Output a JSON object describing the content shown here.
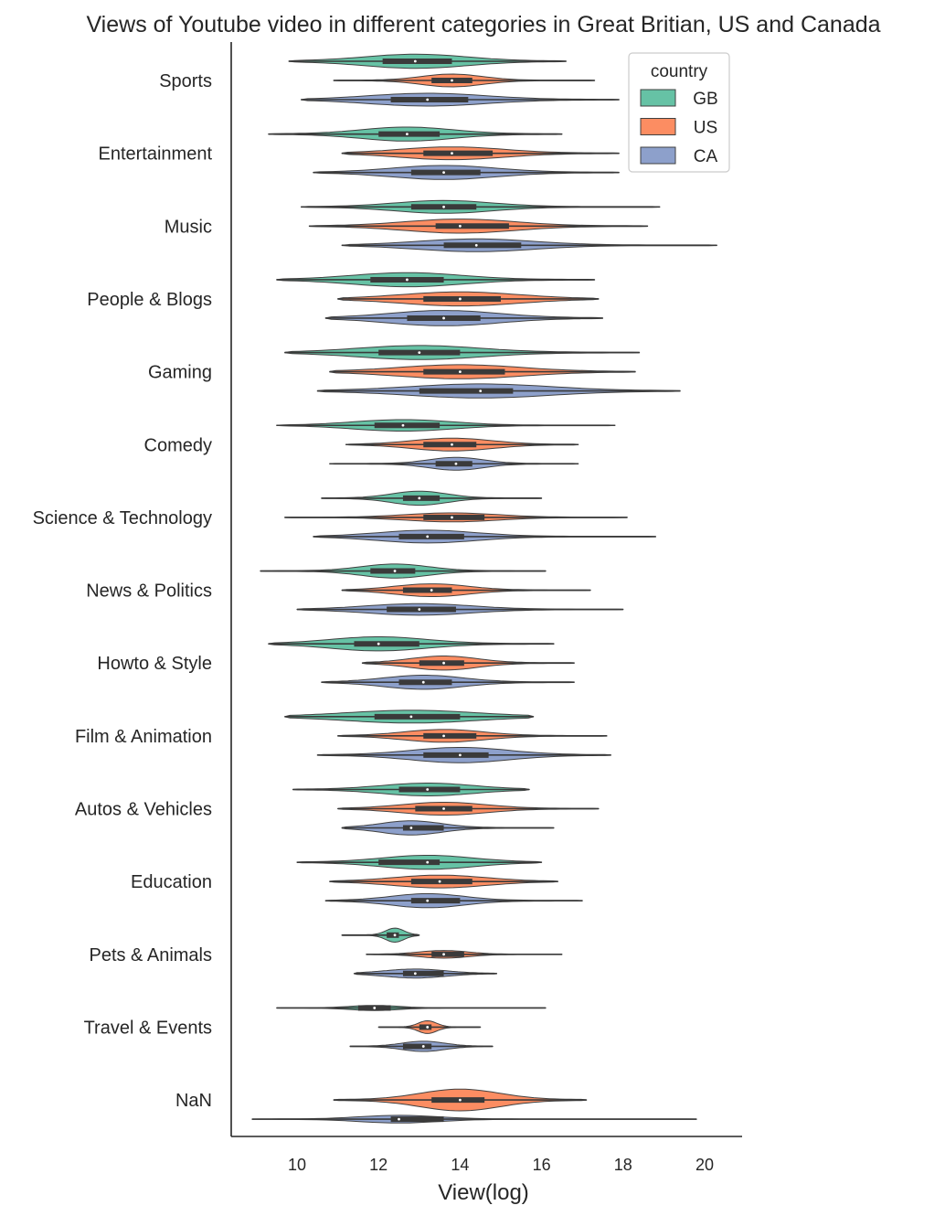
{
  "chart_data": {
    "type": "violin",
    "title": "Views of Youtube video in different categories in Great Britian, US and Canada",
    "xlabel": "View(log)",
    "ylabel": "",
    "xlim": [
      8.4,
      21.0
    ],
    "xticks": [
      "10",
      "12",
      "14",
      "16",
      "18",
      "20"
    ],
    "grid": false,
    "legend": {
      "title": "country",
      "placement": "top-right",
      "entries": [
        {
          "name": "GB",
          "color": "#66c2a5"
        },
        {
          "name": "US",
          "color": "#fc8d62"
        },
        {
          "name": "CA",
          "color": "#8da0cb"
        }
      ]
    },
    "categories": [
      "Sports",
      "Entertainment",
      "Music",
      "People & Blogs",
      "Gaming",
      "Comedy",
      "Science & Technology",
      "News & Politics",
      "Howto & Style",
      "Film & Animation",
      "Autos & Vehicles",
      "Education",
      "Pets & Animals",
      "Travel & Events",
      "NaN"
    ],
    "series": [
      {
        "name": "GB",
        "values": [
          {
            "min": 9.8,
            "q1": 12.1,
            "median": 12.9,
            "q3": 13.8,
            "max": 16.6,
            "width": 0.55
          },
          {
            "min": 9.3,
            "q1": 12.0,
            "median": 12.7,
            "q3": 13.5,
            "max": 16.5,
            "width": 0.55
          },
          {
            "min": 10.1,
            "q1": 12.8,
            "median": 13.6,
            "q3": 14.4,
            "max": 18.9,
            "width": 0.5
          },
          {
            "min": 9.5,
            "q1": 11.8,
            "median": 12.7,
            "q3": 13.6,
            "max": 17.3,
            "width": 0.55
          },
          {
            "min": 9.7,
            "q1": 12.0,
            "median": 13.0,
            "q3": 14.0,
            "max": 18.4,
            "width": 0.55
          },
          {
            "min": 9.5,
            "q1": 11.9,
            "median": 12.6,
            "q3": 13.5,
            "max": 17.8,
            "width": 0.45
          },
          {
            "min": 10.6,
            "q1": 12.6,
            "median": 13.0,
            "q3": 13.5,
            "max": 16.0,
            "width": 0.55
          },
          {
            "min": 9.1,
            "q1": 11.8,
            "median": 12.4,
            "q3": 12.9,
            "max": 16.1,
            "width": 0.55
          },
          {
            "min": 9.3,
            "q1": 11.4,
            "median": 12.0,
            "q3": 13.0,
            "max": 16.3,
            "width": 0.55
          },
          {
            "min": 9.7,
            "q1": 11.9,
            "median": 12.8,
            "q3": 14.0,
            "max": 15.8,
            "width": 0.5
          },
          {
            "min": 9.9,
            "q1": 12.5,
            "median": 13.2,
            "q3": 14.0,
            "max": 15.7,
            "width": 0.5
          },
          {
            "min": 10.0,
            "q1": 12.0,
            "median": 13.2,
            "q3": 13.5,
            "max": 16.0,
            "width": 0.55
          },
          {
            "min": 11.1,
            "q1": 12.2,
            "median": 12.4,
            "q3": 12.5,
            "max": 13.0,
            "width": 0.55
          },
          {
            "min": 9.5,
            "q1": 11.5,
            "median": 11.9,
            "q3": 12.3,
            "max": 16.1,
            "width": 0.2
          },
          null
        ]
      },
      {
        "name": "US",
        "values": [
          {
            "min": 10.9,
            "q1": 13.3,
            "median": 13.8,
            "q3": 14.3,
            "max": 17.3,
            "width": 0.5
          },
          {
            "min": 11.1,
            "q1": 13.1,
            "median": 13.8,
            "q3": 14.8,
            "max": 17.9,
            "width": 0.5
          },
          {
            "min": 10.3,
            "q1": 13.4,
            "median": 14.0,
            "q3": 15.2,
            "max": 18.6,
            "width": 0.55
          },
          {
            "min": 11.0,
            "q1": 13.1,
            "median": 14.0,
            "q3": 15.0,
            "max": 17.4,
            "width": 0.55
          },
          {
            "min": 10.8,
            "q1": 13.1,
            "median": 14.0,
            "q3": 15.1,
            "max": 18.3,
            "width": 0.55
          },
          {
            "min": 11.2,
            "q1": 13.1,
            "median": 13.8,
            "q3": 14.4,
            "max": 16.9,
            "width": 0.5
          },
          {
            "min": 9.7,
            "q1": 13.1,
            "median": 13.8,
            "q3": 14.6,
            "max": 18.1,
            "width": 0.35
          },
          {
            "min": 11.1,
            "q1": 12.6,
            "median": 13.3,
            "q3": 13.8,
            "max": 17.2,
            "width": 0.5
          },
          {
            "min": 11.6,
            "q1": 13.0,
            "median": 13.6,
            "q3": 14.1,
            "max": 16.8,
            "width": 0.55
          },
          {
            "min": 11.0,
            "q1": 13.1,
            "median": 13.6,
            "q3": 14.4,
            "max": 17.6,
            "width": 0.5
          },
          {
            "min": 11.0,
            "q1": 12.9,
            "median": 13.6,
            "q3": 14.3,
            "max": 17.4,
            "width": 0.5
          },
          {
            "min": 10.8,
            "q1": 12.8,
            "median": 13.5,
            "q3": 14.3,
            "max": 16.4,
            "width": 0.5
          },
          {
            "min": 11.7,
            "q1": 13.3,
            "median": 13.6,
            "q3": 14.1,
            "max": 16.5,
            "width": 0.3
          },
          {
            "min": 12.0,
            "q1": 13.0,
            "median": 13.2,
            "q3": 13.3,
            "max": 14.5,
            "width": 0.5
          },
          {
            "min": 10.9,
            "q1": 13.3,
            "median": 14.0,
            "q3": 14.6,
            "max": 17.1,
            "width": 0.85
          }
        ]
      },
      {
        "name": "CA",
        "values": [
          {
            "min": 10.1,
            "q1": 12.3,
            "median": 13.2,
            "q3": 14.2,
            "max": 17.9,
            "width": 0.5
          },
          {
            "min": 10.4,
            "q1": 12.8,
            "median": 13.6,
            "q3": 14.5,
            "max": 17.9,
            "width": 0.55
          },
          {
            "min": 11.1,
            "q1": 13.6,
            "median": 14.4,
            "q3": 15.5,
            "max": 20.3,
            "width": 0.5
          },
          {
            "min": 10.7,
            "q1": 12.7,
            "median": 13.6,
            "q3": 14.5,
            "max": 17.5,
            "width": 0.6
          },
          {
            "min": 10.5,
            "q1": 13.0,
            "median": 14.5,
            "q3": 15.3,
            "max": 19.4,
            "width": 0.55
          },
          {
            "min": 10.8,
            "q1": 13.4,
            "median": 13.9,
            "q3": 14.3,
            "max": 16.9,
            "width": 0.5
          },
          {
            "min": 10.4,
            "q1": 12.5,
            "median": 13.2,
            "q3": 14.1,
            "max": 18.8,
            "width": 0.5
          },
          {
            "min": 10.0,
            "q1": 12.2,
            "median": 13.0,
            "q3": 13.9,
            "max": 18.0,
            "width": 0.45
          },
          {
            "min": 10.6,
            "q1": 12.5,
            "median": 13.1,
            "q3": 13.8,
            "max": 16.8,
            "width": 0.55
          },
          {
            "min": 10.5,
            "q1": 13.1,
            "median": 14.0,
            "q3": 14.7,
            "max": 17.7,
            "width": 0.6
          },
          {
            "min": 11.1,
            "q1": 12.6,
            "median": 12.8,
            "q3": 13.6,
            "max": 16.3,
            "width": 0.55
          },
          {
            "min": 10.7,
            "q1": 12.8,
            "median": 13.2,
            "q3": 14.0,
            "max": 17.0,
            "width": 0.55
          },
          {
            "min": 11.4,
            "q1": 12.6,
            "median": 12.9,
            "q3": 13.6,
            "max": 14.9,
            "width": 0.35
          },
          {
            "min": 11.3,
            "q1": 12.6,
            "median": 13.1,
            "q3": 13.3,
            "max": 14.8,
            "width": 0.4
          },
          {
            "min": 8.9,
            "q1": 12.3,
            "median": 12.5,
            "q3": 13.6,
            "max": 19.8,
            "width": 0.3
          }
        ]
      }
    ]
  }
}
